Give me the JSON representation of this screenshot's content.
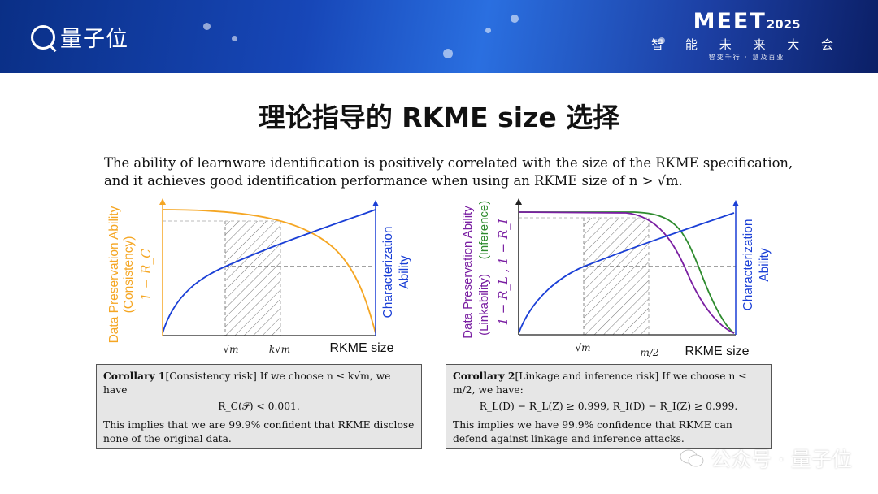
{
  "header": {
    "logo_text": "量子位",
    "event_title": "MEET",
    "event_year": "2025",
    "event_subtitle": "智 能 未 来 大 会",
    "event_tagline": "智变千行 · 慧及百业"
  },
  "slide_title": "理论指导的 RKME size 选择",
  "intro": {
    "line1": "The ability of learnware identification is positively correlated with the size of the RKME specification,",
    "line2": "and it achieves good identification performance when using an RKME size of n > √m."
  },
  "chart_data": [
    {
      "type": "line",
      "xlabel": "RKME size",
      "x_ticks": [
        "√m",
        "k√m"
      ],
      "ylabel_left": [
        "Data Preservation Ability",
        "(Consistency)",
        "1 − R_C"
      ],
      "ylabel_right": [
        "Characterization",
        "Ability"
      ],
      "series": [
        {
          "name": "1 − R_C",
          "color": "#f5a623",
          "shape": "decreasing"
        },
        {
          "name": "Characterization Ability",
          "color": "#1a3fd6",
          "shape": "increasing"
        }
      ]
    },
    {
      "type": "line",
      "xlabel": "RKME size",
      "x_ticks": [
        "√m",
        "m/2"
      ],
      "ylabel_left": [
        "Data Preservation Ability",
        "(Linkability)",
        "(Inference)",
        "1 − R_L , 1 − R_I"
      ],
      "ylabel_right": [
        "Characterization",
        "Ability"
      ],
      "series": [
        {
          "name": "1 − R_L",
          "color": "#7a1fa2",
          "shape": "decreasing"
        },
        {
          "name": "1 − R_I",
          "color": "#2e8b2e",
          "shape": "decreasing"
        },
        {
          "name": "Characterization Ability",
          "color": "#1a3fd6",
          "shape": "increasing"
        }
      ]
    }
  ],
  "corollary1": {
    "label": "Corollary 1",
    "head": "[Consistency risk] If we choose n ≤ k√m, we have",
    "equation": "R_C(𝒫) < 0.001.",
    "note": "This implies that we are 99.9% confident that RKME disclose none of the original data."
  },
  "corollary2": {
    "label": "Corollary 2",
    "head": "[Linkage and inference risk] If we choose n ≤ m/2, we have:",
    "equation": "R_L(D) − R_L(Z) ≥ 0.999, R_I(D) − R_I(Z) ≥ 0.999.",
    "note": "This implies we have 99.9% confidence that RKME can defend against linkage and inference attacks."
  },
  "watermark": "公众号 · 量子位",
  "colors": {
    "orange": "#f5a623",
    "blue": "#1a3fd6",
    "purple": "#7a1fa2",
    "green": "#2e8b2e"
  }
}
